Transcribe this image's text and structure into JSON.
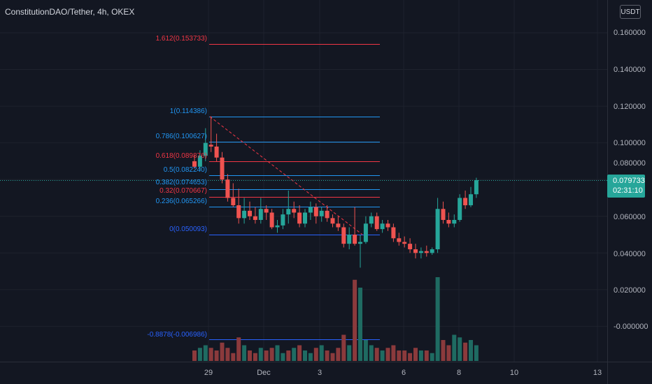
{
  "header": {
    "title": "ConstitutionDAO/Tether, 4h, OKEX"
  },
  "currency_button": {
    "label": "USDT"
  },
  "price_axis": {
    "labels": [
      "0.160000",
      "0.140000",
      "0.120000",
      "0.100000",
      "0.080000",
      "0.060000",
      "0.040000",
      "0.020000",
      "-0.000000"
    ]
  },
  "last_price": {
    "value": "0.079733",
    "countdown": "02:31:10",
    "color": "#26a69a"
  },
  "time_axis": {
    "labels": [
      "29",
      "Dec",
      "3",
      "6",
      "8",
      "10",
      "13"
    ]
  },
  "fib_levels": [
    {
      "label": "1.612(0.153733)",
      "value": 0.153733,
      "color": "#f23645"
    },
    {
      "label": "1(0.114386)",
      "value": 0.114386,
      "color": "#2196f3"
    },
    {
      "label": "0.786(0.100627)",
      "value": 0.100627,
      "color": "#2196f3"
    },
    {
      "label": "0.618(0.089876)",
      "value": 0.089876,
      "color": "#f23645"
    },
    {
      "label": "0.5(0.082240)",
      "value": 0.08224,
      "color": "#2196f3"
    },
    {
      "label": "0.382(0.074653)",
      "value": 0.074653,
      "color": "#2196f3"
    },
    {
      "label": "0.32(0.070667)",
      "value": 0.070667,
      "color": "#f23645"
    },
    {
      "label": "0.236(0.065266)",
      "value": 0.065266,
      "color": "#2196f3"
    },
    {
      "label": "0(0.050093)",
      "value": 0.050093,
      "color": "#2962ff"
    },
    {
      "label": "-0.8878(-0.006986)",
      "value": -0.006986,
      "color": "#2962ff"
    }
  ],
  "colors": {
    "up": "#26a69a",
    "down": "#ef5350",
    "background": "#131722",
    "grid": "#1e222d"
  },
  "chart_data": {
    "type": "candlestick",
    "symbol": "ConstitutionDAO/Tether",
    "interval": "4h",
    "exchange": "OKEX",
    "ylim": [
      -0.012,
      0.168
    ],
    "candles": [
      [
        0.09,
        0.0935,
        0.086,
        0.087
      ],
      [
        0.087,
        0.096,
        0.085,
        0.093
      ],
      [
        0.093,
        0.108,
        0.09,
        0.1
      ],
      [
        0.099,
        0.1144,
        0.095,
        0.098
      ],
      [
        0.098,
        0.105,
        0.09,
        0.092
      ],
      [
        0.092,
        0.095,
        0.078,
        0.08
      ],
      [
        0.08,
        0.083,
        0.068,
        0.07
      ],
      [
        0.07,
        0.078,
        0.065,
        0.066
      ],
      [
        0.066,
        0.075,
        0.056,
        0.059
      ],
      [
        0.059,
        0.07,
        0.056,
        0.063
      ],
      [
        0.063,
        0.068,
        0.058,
        0.06
      ],
      [
        0.06,
        0.065,
        0.056,
        0.058
      ],
      [
        0.058,
        0.07,
        0.056,
        0.064
      ],
      [
        0.064,
        0.066,
        0.058,
        0.062
      ],
      [
        0.062,
        0.064,
        0.053,
        0.054
      ],
      [
        0.054,
        0.058,
        0.051,
        0.055
      ],
      [
        0.055,
        0.064,
        0.053,
        0.061
      ],
      [
        0.061,
        0.074,
        0.056,
        0.064
      ],
      [
        0.064,
        0.068,
        0.059,
        0.062
      ],
      [
        0.062,
        0.066,
        0.054,
        0.056
      ],
      [
        0.056,
        0.064,
        0.054,
        0.062
      ],
      [
        0.062,
        0.068,
        0.058,
        0.065
      ],
      [
        0.065,
        0.067,
        0.056,
        0.06
      ],
      [
        0.06,
        0.065,
        0.057,
        0.063
      ],
      [
        0.063,
        0.066,
        0.057,
        0.059
      ],
      [
        0.059,
        0.061,
        0.054,
        0.056
      ],
      [
        0.056,
        0.06,
        0.052,
        0.054
      ],
      [
        0.054,
        0.056,
        0.043,
        0.045
      ],
      [
        0.045,
        0.054,
        0.042,
        0.05
      ],
      [
        0.05,
        0.065,
        0.044,
        0.045
      ],
      [
        0.045,
        0.05,
        0.032,
        0.046
      ],
      [
        0.046,
        0.06,
        0.045,
        0.056
      ],
      [
        0.056,
        0.062,
        0.054,
        0.06
      ],
      [
        0.06,
        0.062,
        0.052,
        0.053
      ],
      [
        0.053,
        0.058,
        0.051,
        0.056
      ],
      [
        0.056,
        0.058,
        0.052,
        0.054
      ],
      [
        0.054,
        0.056,
        0.046,
        0.048
      ],
      [
        0.048,
        0.051,
        0.044,
        0.046
      ],
      [
        0.046,
        0.049,
        0.043,
        0.045
      ],
      [
        0.045,
        0.048,
        0.04,
        0.042
      ],
      [
        0.042,
        0.045,
        0.037,
        0.04
      ],
      [
        0.04,
        0.043,
        0.037,
        0.041
      ],
      [
        0.041,
        0.044,
        0.038,
        0.04
      ],
      [
        0.04,
        0.043,
        0.039,
        0.042
      ],
      [
        0.042,
        0.07,
        0.04,
        0.064
      ],
      [
        0.064,
        0.068,
        0.056,
        0.058
      ],
      [
        0.058,
        0.062,
        0.054,
        0.056
      ],
      [
        0.056,
        0.061,
        0.054,
        0.058
      ],
      [
        0.058,
        0.072,
        0.057,
        0.07
      ],
      [
        0.07,
        0.074,
        0.064,
        0.066
      ],
      [
        0.066,
        0.076,
        0.065,
        0.072
      ],
      [
        0.072,
        0.081,
        0.07,
        0.0797
      ]
    ],
    "volume": [
      [
        0.004,
        0
      ],
      [
        0.005,
        1
      ],
      [
        0.006,
        1
      ],
      [
        0.005,
        0
      ],
      [
        0.004,
        0
      ],
      [
        0.007,
        0
      ],
      [
        0.005,
        0
      ],
      [
        0.003,
        0
      ],
      [
        0.009,
        0
      ],
      [
        0.006,
        1
      ],
      [
        0.004,
        0
      ],
      [
        0.003,
        0
      ],
      [
        0.005,
        1
      ],
      [
        0.004,
        0
      ],
      [
        0.005,
        0
      ],
      [
        0.006,
        1
      ],
      [
        0.003,
        1
      ],
      [
        0.004,
        0
      ],
      [
        0.005,
        1
      ],
      [
        0.006,
        0
      ],
      [
        0.004,
        1
      ],
      [
        0.003,
        1
      ],
      [
        0.005,
        0
      ],
      [
        0.006,
        1
      ],
      [
        0.004,
        0
      ],
      [
        0.003,
        0
      ],
      [
        0.005,
        0
      ],
      [
        0.01,
        0
      ],
      [
        0.006,
        1
      ],
      [
        0.031,
        0
      ],
      [
        0.028,
        1
      ],
      [
        0.008,
        1
      ],
      [
        0.006,
        1
      ],
      [
        0.005,
        0
      ],
      [
        0.004,
        1
      ],
      [
        0.005,
        0
      ],
      [
        0.006,
        0
      ],
      [
        0.004,
        0
      ],
      [
        0.004,
        0
      ],
      [
        0.003,
        0
      ],
      [
        0.005,
        0
      ],
      [
        0.004,
        1
      ],
      [
        0.004,
        0
      ],
      [
        0.003,
        1
      ],
      [
        0.032,
        1
      ],
      [
        0.008,
        0
      ],
      [
        0.006,
        0
      ],
      [
        0.01,
        1
      ],
      [
        0.009,
        1
      ],
      [
        0.007,
        0
      ],
      [
        0.008,
        1
      ],
      [
        0.006,
        1
      ]
    ]
  }
}
